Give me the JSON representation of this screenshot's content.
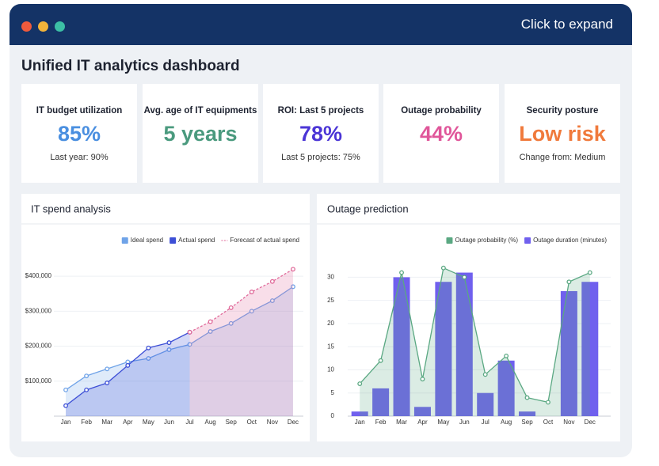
{
  "window": {
    "action": "Click to expand"
  },
  "dashboard": {
    "title": "Unified IT analytics dashboard",
    "kpis": [
      {
        "label": "IT budget utilization",
        "value": "85%",
        "note": "Last year: 90%",
        "color": "#4a8fe0"
      },
      {
        "label": "Avg. age of IT equipments",
        "value": "5 years",
        "color": "#4a9a7e"
      },
      {
        "label": "ROI: Last 5 projects",
        "value": "78%",
        "note": "Last 5 projects: 75%",
        "color": "#4b35d6"
      },
      {
        "label": "Outage probability",
        "value": "44%",
        "color": "#e0569a"
      },
      {
        "label": "Security posture",
        "value": "Low risk",
        "note": "Change from: Medium",
        "color": "#f07a3c"
      }
    ]
  },
  "chart_data": [
    {
      "type": "area",
      "title": "IT spend analysis",
      "categories": [
        "Jan",
        "Feb",
        "Mar",
        "Apr",
        "May",
        "Jun",
        "Jul",
        "Aug",
        "Sep",
        "Oct",
        "Nov",
        "Dec"
      ],
      "series": [
        {
          "name": "Ideal spend",
          "color": "#6fa3e8",
          "values": [
            75000,
            115000,
            135000,
            155000,
            165000,
            190000,
            205000,
            242000,
            265000,
            300000,
            330000,
            370000
          ]
        },
        {
          "name": "Actual spend",
          "color": "#3d4fd6",
          "values": [
            30000,
            75000,
            95000,
            145000,
            195000,
            210000,
            240000,
            null,
            null,
            null,
            null,
            null
          ]
        },
        {
          "name": "Forecast of actual spend",
          "color": "#e06a9a",
          "style": "dashed",
          "values": [
            null,
            null,
            null,
            null,
            null,
            null,
            240000,
            270000,
            310000,
            355000,
            385000,
            420000
          ]
        }
      ],
      "ylim": [
        0,
        450000
      ],
      "yticks": [
        {
          "value": 100000,
          "label": "$100,000"
        },
        {
          "value": 200000,
          "label": "$200,000"
        },
        {
          "value": 300000,
          "label": "$300,000"
        },
        {
          "value": 400000,
          "label": "$400,000"
        }
      ],
      "grid": true
    },
    {
      "type": "combo",
      "title": "Outage prediction",
      "categories": [
        "Jan",
        "Feb",
        "Mar",
        "Apr",
        "May",
        "Jun",
        "Jul",
        "Aug",
        "Sep",
        "Oct",
        "Nov",
        "Dec"
      ],
      "series": [
        {
          "name": "Outage probability (%)",
          "color": "#5aa882",
          "kind": "line",
          "values": [
            7,
            12,
            31,
            8,
            32,
            30,
            9,
            13,
            4,
            3,
            29,
            31
          ]
        },
        {
          "name": "Outage duration (minutes)",
          "color": "#7060ee",
          "kind": "bar",
          "values": [
            1,
            6,
            30,
            2,
            29,
            31,
            5,
            12,
            1,
            0,
            27,
            29
          ]
        }
      ],
      "ylim": [
        0,
        34
      ],
      "yticks": [
        0,
        5,
        10,
        15,
        20,
        25,
        30
      ],
      "grid": true
    }
  ]
}
